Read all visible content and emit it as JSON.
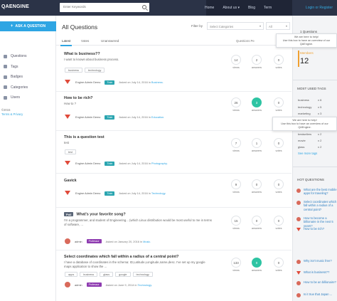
{
  "header": {
    "logo": "QAENGINE",
    "search_placeholder": "Enter Keywords",
    "nav": [
      "Home",
      "About us ▾",
      "Blog",
      "Term"
    ],
    "login": "Login or Register"
  },
  "sidebar": {
    "ask_button": "ASK A QUESTION",
    "items": [
      {
        "label": "Questions",
        "icon": "question-icon"
      },
      {
        "label": "Tags",
        "icon": "tag-icon"
      },
      {
        "label": "Badges",
        "icon": "badge-icon"
      },
      {
        "label": "Categories",
        "icon": "categories-icon"
      },
      {
        "label": "Users",
        "icon": "users-icon"
      }
    ],
    "copyright": "©2015",
    "terms": "Terms & Privacy"
  },
  "main": {
    "title": "All Questions",
    "filter_label": "Filter by",
    "category_select": "Select Categories",
    "all_select": "All",
    "tabs": [
      "Latest",
      "Votes",
      "Unanswered"
    ],
    "right_tab": "Questions Pe",
    "stat_labels": {
      "views": "views",
      "answers": "answers",
      "votes": "votes"
    },
    "questions": [
      {
        "title": "What is business??",
        "excerpt": "I want to known about business process.",
        "tags": [
          "business",
          "technology"
        ],
        "author": "Engine Admin Demo",
        "badge": "Train",
        "asked": "Asked on July 14, 2016 in",
        "category": "Business.",
        "views": "14",
        "answers": "2",
        "votes": "0"
      },
      {
        "title": "How to be rich?",
        "excerpt": "How to ?",
        "tags": [],
        "author": "Engine Admin Demo",
        "badge": "Train",
        "asked": "Asked on July 14, 2016 in",
        "category": "Education.",
        "views": "26",
        "answers": "3",
        "votes": "0"
      },
      {
        "title": "This is a question test",
        "excerpt": "test",
        "tags": [
          "test"
        ],
        "author": "Engine Admin Demo",
        "badge": "Train",
        "asked": "Asked on July 14, 2016 in",
        "category": "Photography.",
        "views": "7",
        "answers": "1",
        "votes": "0"
      },
      {
        "title": "Gavick",
        "excerpt": "",
        "tags": [],
        "author": "Engine Admin Demo",
        "badge": "Train",
        "asked": "Asked on July 14, 2016 in",
        "category": "Technology.",
        "views": "9",
        "answers": "0",
        "votes": "0"
      },
      {
        "poll": "Poll",
        "title": "What's your favorite song?",
        "excerpt": "I'm a programmer, and student of Engineering... (which Linux distribution would be most useful to me in terms of software, ...",
        "tags": [],
        "author": "admin",
        "badge": "Professor",
        "asked": "Asked on January 20, 2016 in",
        "category": "Music.",
        "views": "15",
        "answers": "0",
        "votes": "0"
      },
      {
        "title": "Select coordinates which fall within a radius of a central point?",
        "excerpt": "I have a database of coordinates in the schema: ID,Latitude,Longitude,name,desc. I've set up my google maps application to show the ...",
        "tags": [
          "apps",
          "business",
          "glass",
          "google",
          "technology"
        ],
        "author": "admin",
        "badge": "Professor",
        "asked": "Asked on June 9, 2014 in",
        "category": "Technology.",
        "views": "133",
        "answers": "0",
        "votes": "0"
      }
    ]
  },
  "rightbar": {
    "questions_count": "1 Questions",
    "members_label": "Members",
    "members_count": "12",
    "tags_title": "MOST USED TAGS",
    "tags": [
      {
        "name": "business",
        "count": "x 6"
      },
      {
        "name": "technology",
        "count": "x 5"
      },
      {
        "name": "marketing",
        "count": "x 3"
      },
      {
        "name": "Samsung",
        "count": "x 2"
      },
      {
        "name": "bestsellers",
        "count": "x 2"
      },
      {
        "name": "movie",
        "count": "x 2"
      },
      {
        "name": "glass",
        "count": "x 2"
      }
    ],
    "see_more": "See more tags",
    "hot_title": "HOT QUESTIONS",
    "hot": [
      {
        "text": "What are the best mobile apps for traveling?",
        "avatar": "round"
      },
      {
        "text": "Select coordinates which fall within a radius of a central point?",
        "avatar": "round"
      },
      {
        "text": "How to become a billionaire in the next 5 years?",
        "avatar": "round"
      },
      {
        "text": "How to be rich?",
        "avatar": "logo"
      },
      {
        "text": "Why isn't music free?",
        "avatar": "round"
      },
      {
        "text": "What is business??",
        "avatar": "logo"
      },
      {
        "text": "How to be an billionaire?",
        "avatar": "round"
      },
      {
        "text": "Is it true that Japan ...",
        "avatar": "round"
      }
    ]
  },
  "popups": [
    "We are here to help!\nUse this box to have an overview of our QAEngine.",
    "We are here to help!\nUse this box to have an overview of our QAEngine."
  ]
}
